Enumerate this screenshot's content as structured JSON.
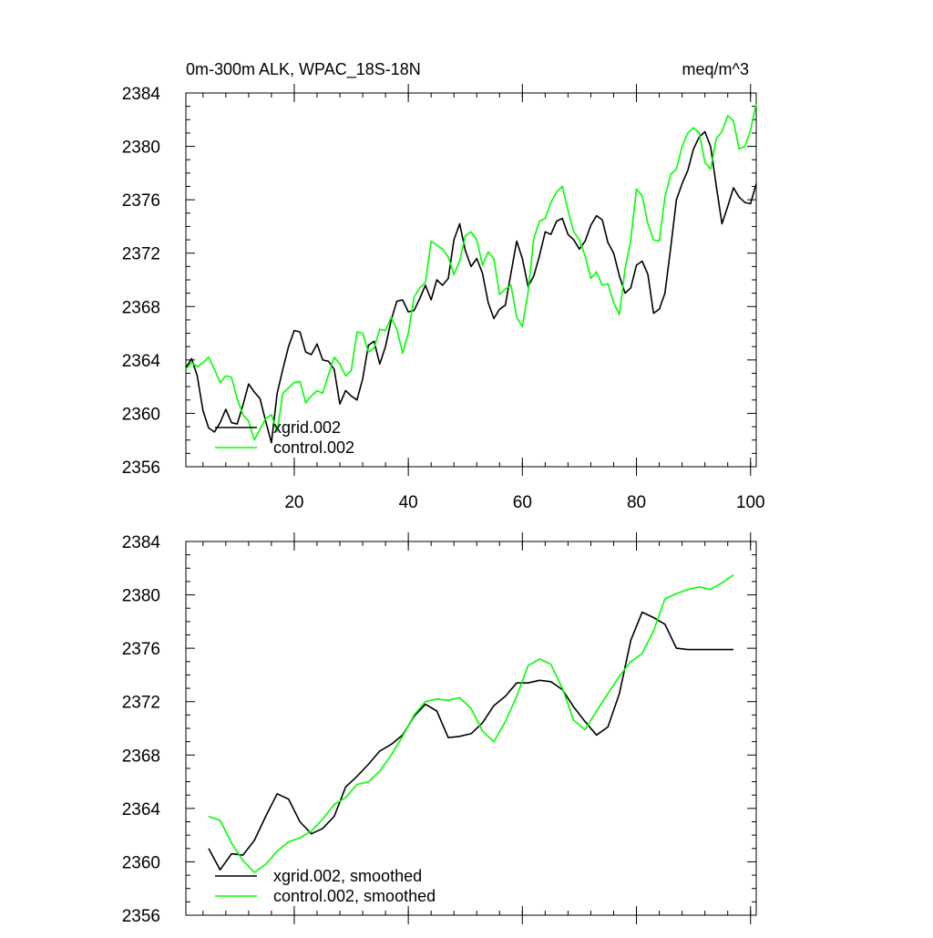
{
  "chart_data": [
    {
      "type": "line",
      "title": "0m-300m ALK, WPAC_18S-18N",
      "units": "meq/m^3",
      "xlabel": "",
      "ylabel": "",
      "xlim": [
        1,
        101
      ],
      "ylim": [
        2356,
        2384
      ],
      "x_ticks": [
        20,
        40,
        60,
        80,
        100
      ],
      "y_ticks": [
        2356,
        2360,
        2364,
        2368,
        2372,
        2376,
        2380,
        2384
      ],
      "x_tick_labels_shown": true,
      "grid": false,
      "legend_position": "bottom-left",
      "x": [
        1,
        2,
        3,
        4,
        5,
        6,
        7,
        8,
        9,
        10,
        11,
        12,
        13,
        14,
        15,
        16,
        17,
        18,
        19,
        20,
        21,
        22,
        23,
        24,
        25,
        26,
        27,
        28,
        29,
        30,
        31,
        32,
        33,
        34,
        35,
        36,
        37,
        38,
        39,
        40,
        41,
        42,
        43,
        44,
        45,
        46,
        47,
        48,
        49,
        50,
        51,
        52,
        53,
        54,
        55,
        56,
        57,
        58,
        59,
        60,
        61,
        62,
        63,
        64,
        65,
        66,
        67,
        68,
        69,
        70,
        71,
        72,
        73,
        74,
        75,
        76,
        77,
        78,
        79,
        80,
        81,
        82,
        83,
        84,
        85,
        86,
        87,
        88,
        89,
        90,
        91,
        92,
        93,
        94,
        95,
        96,
        97,
        98,
        99,
        100,
        101
      ],
      "series": [
        {
          "name": "xgrid.002",
          "color": "#000000",
          "values": [
            2363.4,
            2364.1,
            2362.8,
            2360.2,
            2358.9,
            2358.6,
            2359.3,
            2360.3,
            2359.3,
            2359.2,
            2360.6,
            2362.2,
            2361.6,
            2361.1,
            2359.4,
            2357.8,
            2361.5,
            2363.3,
            2365.0,
            2366.2,
            2366.1,
            2364.6,
            2364.4,
            2365.2,
            2364.0,
            2363.9,
            2363.3,
            2360.7,
            2361.7,
            2361.3,
            2361.0,
            2362.6,
            2365.1,
            2365.4,
            2363.7,
            2365.0,
            2367.0,
            2368.4,
            2368.5,
            2367.6,
            2367.7,
            2368.6,
            2369.6,
            2368.5,
            2370.0,
            2369.6,
            2370.1,
            2373.0,
            2374.2,
            2372.2,
            2371.0,
            2371.6,
            2370.5,
            2368.3,
            2367.1,
            2367.8,
            2368.1,
            2370.5,
            2372.9,
            2371.6,
            2369.5,
            2370.3,
            2371.8,
            2373.6,
            2373.4,
            2374.4,
            2374.6,
            2373.4,
            2373.0,
            2372.3,
            2372.9,
            2374.1,
            2374.8,
            2374.5,
            2372.8,
            2372.0,
            2370.3,
            2369.0,
            2369.4,
            2371.1,
            2371.4,
            2370.4,
            2367.5,
            2367.8,
            2369.0,
            2372.4,
            2376.0,
            2377.2,
            2378.2,
            2379.8,
            2380.7,
            2381.1,
            2380.0,
            2377.0,
            2374.2,
            2375.5,
            2376.9,
            2376.2,
            2375.8,
            2375.7,
            2377.2
          ]
        },
        {
          "name": "control.002",
          "color": "#00ff00",
          "values": [
            2363.3,
            2363.8,
            2363.5,
            2363.8,
            2364.2,
            2363.3,
            2362.3,
            2362.8,
            2362.7,
            2361.1,
            2359.9,
            2359.4,
            2358.0,
            2358.8,
            2359.6,
            2359.9,
            2358.6,
            2361.5,
            2361.9,
            2362.3,
            2362.4,
            2360.8,
            2361.3,
            2361.7,
            2361.5,
            2362.9,
            2364.2,
            2363.7,
            2362.8,
            2363.2,
            2366.1,
            2366.0,
            2364.6,
            2364.9,
            2366.3,
            2366.2,
            2367.2,
            2366.3,
            2364.5,
            2366.0,
            2368.7,
            2369.4,
            2369.8,
            2372.9,
            2372.6,
            2372.3,
            2371.7,
            2370.4,
            2371.4,
            2373.3,
            2373.6,
            2373.0,
            2371.1,
            2372.1,
            2371.6,
            2368.9,
            2369.3,
            2369.6,
            2367.2,
            2366.5,
            2369.1,
            2373.1,
            2374.4,
            2374.6,
            2375.8,
            2376.6,
            2377.0,
            2375.2,
            2373.6,
            2373.0,
            2371.8,
            2370.1,
            2370.6,
            2369.6,
            2369.7,
            2368.3,
            2367.4,
            2370.8,
            2373.0,
            2376.8,
            2376.3,
            2374.2,
            2373.0,
            2372.9,
            2376.2,
            2377.9,
            2378.3,
            2380.0,
            2381.0,
            2381.4,
            2381.0,
            2378.8,
            2378.3,
            2380.6,
            2381.1,
            2382.3,
            2381.9,
            2379.8,
            2380.0,
            2381.2,
            2383.2
          ]
        }
      ],
      "legend": [
        {
          "label": "xgrid.002",
          "color": "#000000"
        },
        {
          "label": "control.002",
          "color": "#00ff00"
        }
      ]
    },
    {
      "type": "line",
      "title": "",
      "units": "",
      "xlabel": "",
      "ylabel": "",
      "xlim": [
        1,
        101
      ],
      "ylim": [
        2356,
        2384
      ],
      "x_ticks": [
        20,
        40,
        60,
        80,
        100
      ],
      "y_ticks": [
        2356,
        2360,
        2364,
        2368,
        2372,
        2376,
        2380,
        2384
      ],
      "x_tick_labels_shown": false,
      "grid": false,
      "legend_position": "bottom-left",
      "x": [
        5,
        7,
        9,
        11,
        13,
        15,
        17,
        19,
        21,
        23,
        25,
        27,
        29,
        31,
        33,
        35,
        37,
        39,
        41,
        43,
        45,
        47,
        49,
        51,
        53,
        55,
        57,
        59,
        61,
        63,
        65,
        67,
        69,
        71,
        73,
        75,
        77,
        79,
        81,
        83,
        85,
        87,
        89,
        91,
        93,
        95,
        97
      ],
      "series": [
        {
          "name": "xgrid.002, smoothed",
          "color": "#000000",
          "values": [
            2361.0,
            2359.4,
            2360.6,
            2360.5,
            2361.6,
            2363.4,
            2365.1,
            2364.7,
            2363.0,
            2362.1,
            2362.5,
            2363.4,
            2365.6,
            2366.4,
            2367.3,
            2368.3,
            2368.8,
            2369.5,
            2370.9,
            2371.8,
            2371.3,
            2369.3,
            2369.4,
            2369.6,
            2370.4,
            2371.7,
            2372.4,
            2373.4,
            2373.4,
            2373.6,
            2373.5,
            2372.9,
            2371.6,
            2370.5,
            2369.5,
            2370.1,
            2372.6,
            2376.6,
            2378.7,
            2378.3,
            2377.8,
            2376.0,
            2375.9,
            2375.9,
            2375.9,
            2375.9,
            2375.9
          ]
        },
        {
          "name": "control.002, smoothed",
          "color": "#00ff00",
          "values": [
            2363.4,
            2363.1,
            2361.4,
            2360.1,
            2359.2,
            2359.8,
            2360.8,
            2361.5,
            2361.8,
            2362.3,
            2363.2,
            2364.3,
            2364.8,
            2365.8,
            2366.0,
            2366.8,
            2368.0,
            2369.4,
            2371.0,
            2372.0,
            2372.2,
            2372.1,
            2372.3,
            2371.5,
            2369.8,
            2369.0,
            2370.5,
            2372.4,
            2374.7,
            2375.2,
            2374.8,
            2373.0,
            2370.6,
            2369.9,
            2371.3,
            2372.6,
            2373.9,
            2375.0,
            2375.6,
            2377.3,
            2379.7,
            2380.1,
            2380.4,
            2380.6,
            2380.4,
            2380.9,
            2381.5
          ]
        }
      ],
      "legend": [
        {
          "label": "xgrid.002, smoothed",
          "color": "#000000"
        },
        {
          "label": "control.002, smoothed",
          "color": "#00ff00"
        }
      ]
    }
  ]
}
